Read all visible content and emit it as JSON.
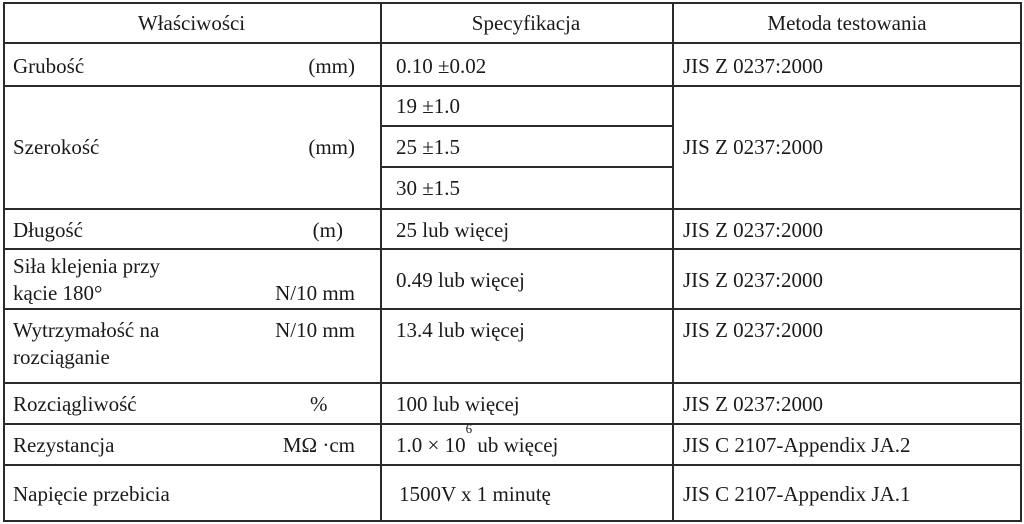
{
  "headers": [
    "Właściwości",
    "Specyfikacja",
    "Metoda testowania"
  ],
  "rows": [
    {
      "property": "Grubość",
      "unit": "(mm)",
      "specs": [
        "0.10 ±0.02"
      ],
      "method": "JIS Z 0237:2000"
    },
    {
      "property": "Szerokość",
      "unit": "(mm)",
      "specs": [
        "19 ±1.0",
        "25 ±1.5",
        "30 ±1.5"
      ],
      "method": "JIS Z 0237:2000"
    },
    {
      "property": "Długość",
      "unit": "(m)",
      "specs": [
        "25 lub więcej"
      ],
      "method": "JIS Z 0237:2000"
    },
    {
      "property_line1": "Siła klejenia przy",
      "property_line2": "kącie  180°",
      "unit": "N/10 mm",
      "specs": [
        "0.49 lub więcej"
      ],
      "method": "JIS Z 0237:2000"
    },
    {
      "property_line1": "Wytrzymałość na",
      "property_line2": "rozciąganie",
      "unit": "N/10 mm",
      "specs": [
        "13.4 lub więcej"
      ],
      "method": "JIS Z 0237:2000"
    },
    {
      "property": "Rozciągliwość",
      "unit": "%",
      "specs": [
        "100 lub więcej"
      ],
      "method": "JIS Z 0237:2000"
    },
    {
      "property": "Rezystancja",
      "unit": "MΩ ·cm",
      "spec_base": "1.0 × 10",
      "spec_exp": "6",
      "spec_rest": " ub więcej",
      "method": "JIS C 2107-Appendix JA.2"
    },
    {
      "property": "Napięcie przebicia",
      "unit": "",
      "specs": [
        "1500V x 1 minutę"
      ],
      "method": "JIS C 2107-Appendix JA.1"
    }
  ]
}
